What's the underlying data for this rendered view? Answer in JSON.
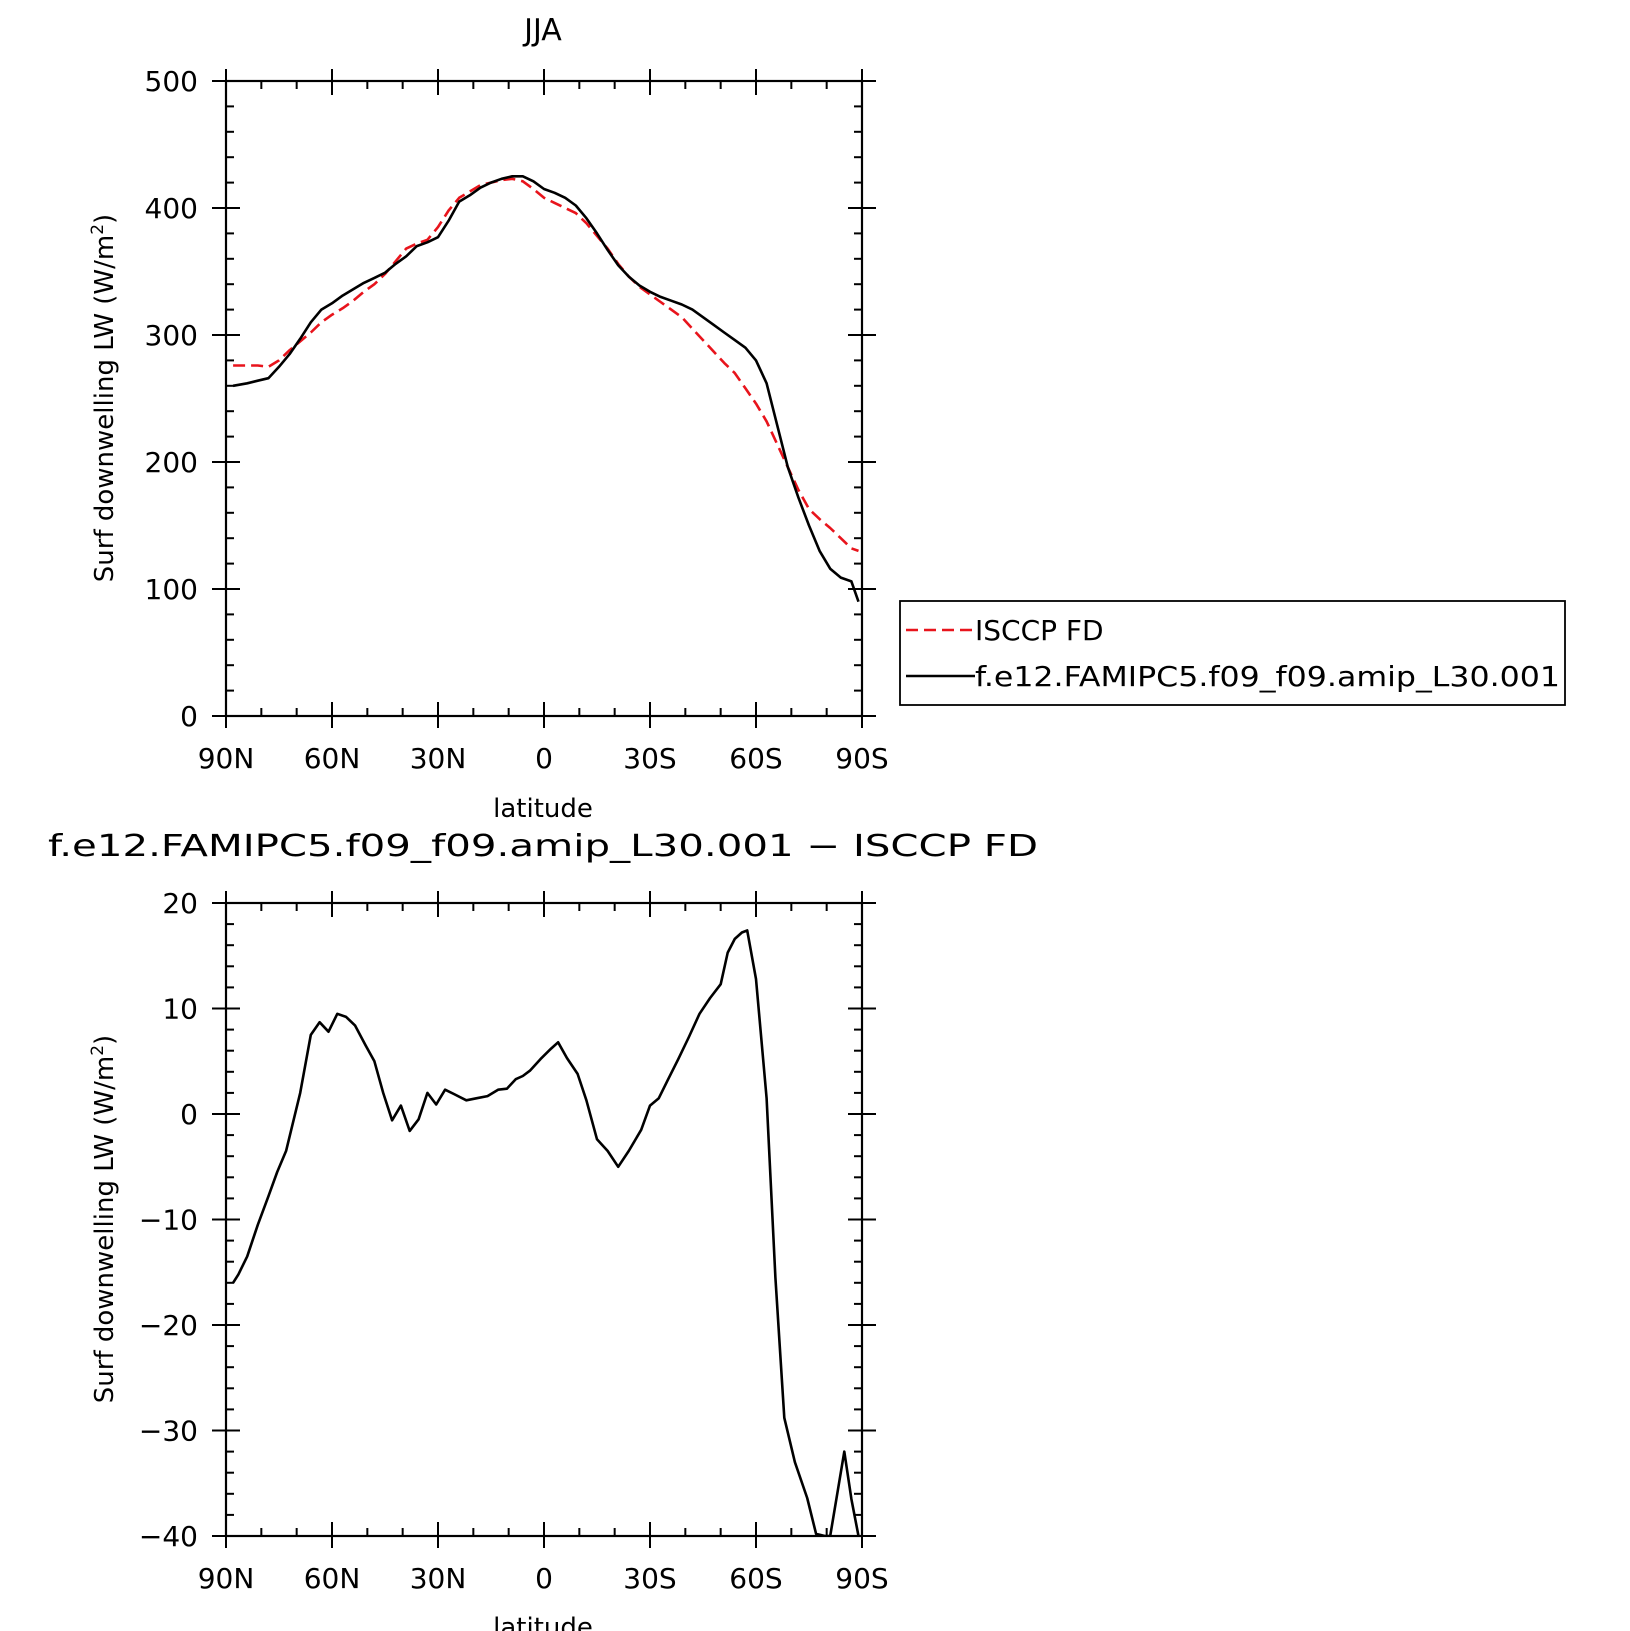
{
  "colors": {
    "observation": "#e8141c",
    "model": "#000000",
    "frame": "#000000"
  },
  "chart_data": [
    {
      "type": "line",
      "title": "JJA",
      "xlabel": "latitude",
      "ylabel_main": "Surf downwelling LW (W/m",
      "ylabel_sup": "2",
      "ylabel_close": ")",
      "xlim": [
        -90,
        90
      ],
      "ylim": [
        0,
        500
      ],
      "x_ticks": [
        {
          "value": -90,
          "label": "90N"
        },
        {
          "value": -60,
          "label": "60N"
        },
        {
          "value": -30,
          "label": "30N"
        },
        {
          "value": 0,
          "label": "0"
        },
        {
          "value": 30,
          "label": "30S"
        },
        {
          "value": 60,
          "label": "60S"
        },
        {
          "value": 90,
          "label": "90S"
        }
      ],
      "y_ticks": [
        {
          "value": 0,
          "label": "0"
        },
        {
          "value": 100,
          "label": "100"
        },
        {
          "value": 200,
          "label": "200"
        },
        {
          "value": 300,
          "label": "300"
        },
        {
          "value": 400,
          "label": "400"
        },
        {
          "value": 500,
          "label": "500"
        }
      ],
      "legend_placement": "right of plot",
      "series": [
        {
          "name": "ISCCP FD",
          "color": "#e8141c",
          "style": "dashed",
          "x": [
            -88,
            -84,
            -81,
            -78,
            -75,
            -72,
            -69,
            -66,
            -63,
            -60,
            -57,
            -54,
            -51,
            -48,
            -45,
            -42,
            -39,
            -36,
            -33,
            -30,
            -27,
            -24,
            -21,
            -18,
            -15,
            -12,
            -9,
            -6,
            -3,
            0,
            3,
            6,
            9,
            12,
            15,
            18,
            21,
            24,
            27,
            30,
            33,
            36,
            39,
            42,
            45,
            48,
            51,
            54,
            57,
            60,
            63,
            66,
            69,
            72,
            75,
            78,
            81,
            84,
            87,
            89
          ],
          "y": [
            276,
            276,
            276,
            275,
            280,
            288,
            295,
            302,
            310,
            316,
            321,
            327,
            334,
            340,
            348,
            358,
            368,
            372,
            375,
            385,
            398,
            408,
            413,
            418,
            420,
            422,
            423,
            421,
            415,
            408,
            404,
            400,
            396,
            388,
            378,
            368,
            356,
            346,
            338,
            332,
            326,
            320,
            314,
            305,
            296,
            287,
            278,
            270,
            258,
            246,
            232,
            214,
            196,
            178,
            163,
            155,
            148,
            140,
            132,
            130
          ]
        },
        {
          "name": "f.e12.FAMIPC5.f09_f09.amip_L30.001",
          "color": "#000000",
          "style": "solid",
          "x": [
            -88,
            -84,
            -81,
            -78,
            -75,
            -72,
            -69,
            -66,
            -63,
            -60,
            -57,
            -54,
            -51,
            -48,
            -45,
            -42,
            -39,
            -36,
            -33,
            -30,
            -27,
            -24,
            -21,
            -18,
            -15,
            -12,
            -9,
            -6,
            -3,
            0,
            3,
            6,
            9,
            12,
            15,
            18,
            21,
            24,
            27,
            30,
            33,
            36,
            39,
            42,
            45,
            48,
            51,
            54,
            57,
            60,
            63,
            66,
            69,
            72,
            75,
            78,
            81,
            84,
            87,
            89
          ],
          "y": [
            260,
            262,
            264,
            266,
            275,
            285,
            297,
            310,
            320,
            325,
            331,
            336,
            341,
            345,
            349,
            356,
            362,
            370,
            373,
            377,
            390,
            405,
            410,
            416,
            420,
            423,
            425,
            425,
            421,
            415,
            412,
            408,
            402,
            392,
            380,
            367,
            355,
            346,
            339,
            334,
            330,
            327,
            324,
            320,
            314,
            308,
            302,
            296,
            290,
            280,
            262,
            229,
            196,
            172,
            150,
            130,
            116,
            109,
            106,
            90
          ]
        }
      ]
    },
    {
      "type": "line",
      "title": "f.e12.FAMIPC5.f09_f09.amip_L30.001 − ISCCP FD",
      "xlabel": "latitude",
      "ylabel_main": "Surf downwelling LW (W/m",
      "ylabel_sup": "2",
      "ylabel_close": ")",
      "xlim": [
        -90,
        90
      ],
      "ylim": [
        -40,
        20
      ],
      "x_ticks": [
        {
          "value": -90,
          "label": "90N"
        },
        {
          "value": -60,
          "label": "60N"
        },
        {
          "value": -30,
          "label": "30N"
        },
        {
          "value": 0,
          "label": "0"
        },
        {
          "value": 30,
          "label": "30S"
        },
        {
          "value": 60,
          "label": "60S"
        },
        {
          "value": 90,
          "label": "90S"
        }
      ],
      "y_ticks": [
        {
          "value": -40,
          "label": "−40"
        },
        {
          "value": -30,
          "label": "−30"
        },
        {
          "value": -20,
          "label": "−20"
        },
        {
          "value": -10,
          "label": "−10"
        },
        {
          "value": 0,
          "label": "0"
        },
        {
          "value": 10,
          "label": "10"
        },
        {
          "value": 20,
          "label": "20"
        }
      ],
      "series": [
        {
          "color": "#000000",
          "style": "solid",
          "x": [
            -88,
            -86.5,
            -84,
            -81,
            -78,
            -75.5,
            -73,
            -69,
            -66,
            -63.5,
            -61,
            -58.5,
            -56,
            -53.5,
            -50.5,
            -48,
            -45.5,
            -43,
            -40.5,
            -38,
            -35.5,
            -33,
            -30.5,
            -28,
            -25.5,
            -22,
            -19,
            -16,
            -13,
            -10.5,
            -8,
            -6,
            -4,
            -1,
            2,
            4,
            6.5,
            9.5,
            12,
            15,
            18,
            21,
            24,
            27.5,
            30,
            32.5,
            35,
            38,
            41,
            44,
            47,
            50,
            52,
            54,
            56,
            57.5,
            60,
            63,
            65.5,
            68,
            71,
            74.5,
            77,
            79.5,
            81,
            83.5,
            85,
            87,
            89
          ],
          "y": [
            -16,
            -15.2,
            -13.5,
            -10.5,
            -7.8,
            -5.5,
            -3.5,
            2,
            7.5,
            8.7,
            7.8,
            9.5,
            9.2,
            8.4,
            6.5,
            5,
            2,
            -0.6,
            0.8,
            -1.6,
            -0.5,
            2,
            0.9,
            2.3,
            1.9,
            1.3,
            1.5,
            1.7,
            2.3,
            2.4,
            3.3,
            3.6,
            4.1,
            5.2,
            6.2,
            6.8,
            5.3,
            3.8,
            1.3,
            -2.4,
            -3.5,
            -5,
            -3.5,
            -1.5,
            0.8,
            1.5,
            3.2,
            5.2,
            7.3,
            9.5,
            11.0,
            12.3,
            15.3,
            16.6,
            17.2,
            17.4,
            12.8,
            1.5,
            -15.5,
            -28.8,
            -33,
            -36.4,
            -39.8,
            -40,
            -40,
            -35,
            -32,
            -36.5,
            -40
          ]
        }
      ]
    }
  ],
  "legend": {
    "items": [
      {
        "label": "ISCCP FD",
        "color": "#e8141c",
        "style": "dashed"
      },
      {
        "label": "f.e12.FAMIPC5.f09_f09.amip_L30.001",
        "color": "#000000",
        "style": "solid"
      }
    ]
  }
}
